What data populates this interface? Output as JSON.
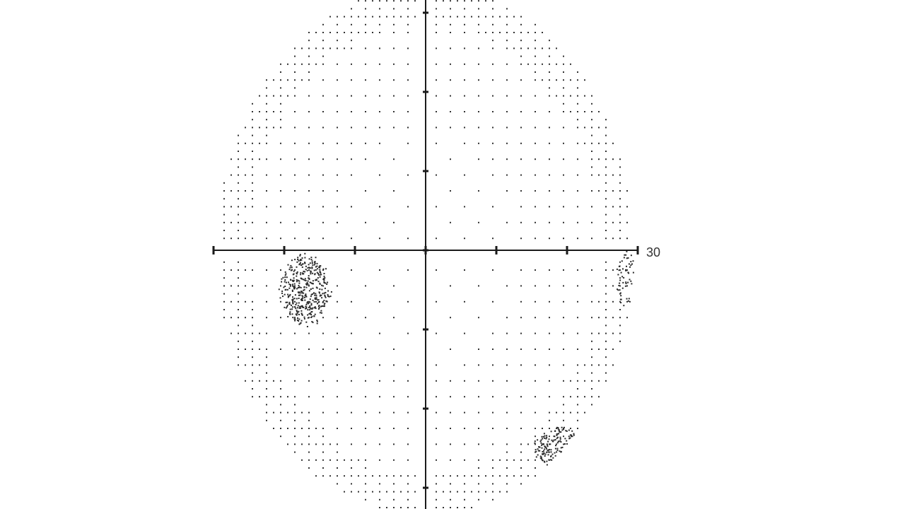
{
  "chart_data": {
    "type": "scatter",
    "description_kind": "visual-field-grayscale",
    "x_axis": {
      "range": [
        -30,
        30
      ],
      "ticks": [
        -30,
        -20,
        -10,
        0,
        10,
        20,
        30
      ],
      "end_label": "30"
    },
    "y_axis": {
      "range": [
        -34,
        34
      ],
      "ticks": [
        -30,
        -20,
        -10,
        0,
        10,
        20,
        30
      ]
    },
    "field_extent": {
      "x_radius": 29.5,
      "y_radius": 33.5
    },
    "grid_step": 2,
    "gap_rows_y": [
      0
    ],
    "gap_cols_x": [
      0
    ],
    "defect_regions": [
      {
        "name": "inferotemporal-defect",
        "center": [
          -17,
          -5
        ],
        "rx": 3.4,
        "ry": 4.4,
        "intensity": "dense"
      },
      {
        "name": "inferonasal-defect",
        "center": [
          19,
          -25
        ],
        "rx": 3.4,
        "ry": 2.6,
        "intensity": "moderate"
      },
      {
        "name": "nasal-edge-defect",
        "center": [
          28.5,
          -4
        ],
        "rx": 1.5,
        "ry": 3.5,
        "intensity": "light"
      }
    ],
    "grid": false,
    "legend": "none"
  }
}
